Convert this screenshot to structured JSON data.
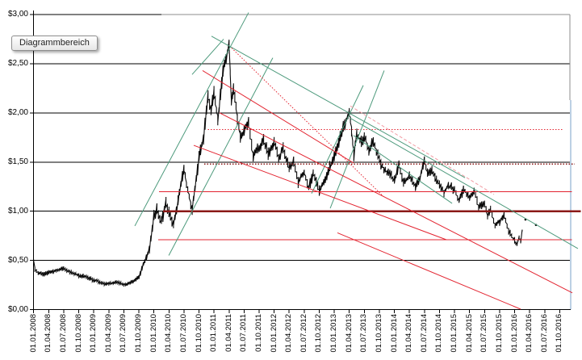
{
  "tooltip": {
    "label": "Diagrammbereich"
  },
  "colors": {
    "green_line": "#4d9a7c",
    "red_line": "#e32430",
    "dark_red_line": "#8b1a18",
    "pink_line": "#f29ca4",
    "price": "#0a0a0a",
    "grid": "#000000",
    "plot_border_gray": "#8c8c8c",
    "plot_border_blue": "#78a0c8",
    "background": "#ffffff"
  },
  "chart_data": {
    "type": "line",
    "title": "",
    "xlabel": "",
    "ylabel": "",
    "ylim": [
      0,
      3
    ],
    "xlim_quarters": [
      0,
      36
    ],
    "grid": "horizontal",
    "y_tick_labels": [
      "$3,00",
      "$2,50",
      "$2,00",
      "$1,50",
      "$1,00",
      "$0,50",
      "$0,00"
    ],
    "y_tick_values": [
      3.0,
      2.5,
      2.0,
      1.5,
      1.0,
      0.5,
      0.0
    ],
    "y_gridline_values": [
      0.5,
      1.0,
      1.5,
      2.0,
      2.5
    ],
    "x_tick_labels": [
      "01.01.2008",
      "01.04.2008",
      "01.07.2008",
      "01.10.2008",
      "01.01.2009",
      "01.04.2009",
      "01.07.2009",
      "01.10.2009",
      "01.01.2010",
      "01.04.2010",
      "01.07.2010",
      "01.10.2010",
      "01.01.2011",
      "01.04.2011",
      "01.07.2011",
      "01.10.2011",
      "01.01.2012",
      "01.04.2012",
      "01.07.2012",
      "01.10.2012",
      "01.01.2013",
      "01.04.2013",
      "01.07.2013",
      "01.10.2013",
      "01.01.2014",
      "01.04.2014",
      "01.07.2014",
      "01.10.2014",
      "01.01.2015",
      "01.04.2015",
      "01.07.2015",
      "01.10.2015",
      "01.01.2016",
      "01.04.2016",
      "01.07.2016",
      "01.10.2016"
    ],
    "x_unit": "quarter_index_from_2008Q1",
    "series": [
      {
        "name": "price",
        "points_tvr": [
          [
            0,
            0.5,
            0.01
          ],
          [
            0.08,
            0.41,
            0.02
          ],
          [
            0.3,
            0.37,
            0.02
          ],
          [
            0.6,
            0.355,
            0.02
          ],
          [
            1.0,
            0.38,
            0.02
          ],
          [
            1.5,
            0.4,
            0.025
          ],
          [
            2.0,
            0.42,
            0.02
          ],
          [
            2.5,
            0.38,
            0.02
          ],
          [
            3.0,
            0.345,
            0.02
          ],
          [
            3.5,
            0.33,
            0.02
          ],
          [
            4.0,
            0.3,
            0.02
          ],
          [
            4.5,
            0.27,
            0.015
          ],
          [
            5.0,
            0.26,
            0.015
          ],
          [
            5.5,
            0.28,
            0.015
          ],
          [
            6.0,
            0.25,
            0.015
          ],
          [
            6.5,
            0.28,
            0.018
          ],
          [
            7.0,
            0.33,
            0.02
          ],
          [
            7.4,
            0.5,
            0.03
          ],
          [
            7.7,
            0.62,
            0.04
          ],
          [
            8.0,
            0.95,
            0.05
          ],
          [
            8.2,
            1.02,
            0.05
          ],
          [
            8.5,
            0.9,
            0.05
          ],
          [
            8.8,
            1.08,
            0.05
          ],
          [
            9.0,
            1.0,
            0.05
          ],
          [
            9.3,
            0.86,
            0.045
          ],
          [
            9.6,
            1.1,
            0.05
          ],
          [
            10.0,
            1.44,
            0.05
          ],
          [
            10.25,
            1.2,
            0.05
          ],
          [
            10.55,
            1.01,
            0.05
          ],
          [
            11.0,
            1.55,
            0.06
          ],
          [
            11.3,
            1.72,
            0.06
          ],
          [
            11.6,
            2.18,
            0.07
          ],
          [
            11.8,
            2.03,
            0.06
          ],
          [
            12.0,
            2.22,
            0.06
          ],
          [
            12.25,
            1.93,
            0.06
          ],
          [
            12.6,
            2.42,
            0.06
          ],
          [
            13.0,
            2.7,
            0.04
          ],
          [
            13.15,
            2.12,
            0.05
          ],
          [
            13.3,
            2.26,
            0.05
          ],
          [
            13.55,
            1.95,
            0.05
          ],
          [
            13.75,
            1.76,
            0.05
          ],
          [
            14.0,
            1.82,
            0.05
          ],
          [
            14.3,
            1.9,
            0.05
          ],
          [
            14.6,
            1.57,
            0.05
          ],
          [
            15.0,
            1.64,
            0.05
          ],
          [
            15.3,
            1.73,
            0.05
          ],
          [
            15.6,
            1.58,
            0.05
          ],
          [
            16.0,
            1.7,
            0.05
          ],
          [
            16.3,
            1.54,
            0.05
          ],
          [
            16.6,
            1.64,
            0.05
          ],
          [
            17.0,
            1.44,
            0.05
          ],
          [
            17.3,
            1.5,
            0.05
          ],
          [
            17.6,
            1.3,
            0.05
          ],
          [
            18.0,
            1.4,
            0.05
          ],
          [
            18.3,
            1.24,
            0.05
          ],
          [
            18.6,
            1.4,
            0.05
          ],
          [
            19.0,
            1.2,
            0.05
          ],
          [
            19.3,
            1.3,
            0.05
          ],
          [
            19.7,
            1.45,
            0.05
          ],
          [
            20.0,
            1.55,
            0.05
          ],
          [
            20.3,
            1.7,
            0.05
          ],
          [
            20.6,
            1.85,
            0.06
          ],
          [
            21.0,
            2.02,
            0.04
          ],
          [
            21.15,
            1.82,
            0.05
          ],
          [
            21.3,
            1.57,
            0.05
          ],
          [
            21.5,
            1.8,
            0.05
          ],
          [
            21.8,
            1.7,
            0.05
          ],
          [
            22.0,
            1.77,
            0.05
          ],
          [
            22.3,
            1.62,
            0.05
          ],
          [
            22.6,
            1.71,
            0.05
          ],
          [
            23.0,
            1.52,
            0.05
          ],
          [
            23.3,
            1.42,
            0.045
          ],
          [
            23.7,
            1.38,
            0.045
          ],
          [
            24.0,
            1.32,
            0.045
          ],
          [
            24.3,
            1.47,
            0.045
          ],
          [
            24.6,
            1.3,
            0.04
          ],
          [
            25.0,
            1.36,
            0.04
          ],
          [
            25.4,
            1.24,
            0.04
          ],
          [
            25.7,
            1.34,
            0.04
          ],
          [
            26.0,
            1.52,
            0.04
          ],
          [
            26.2,
            1.38,
            0.04
          ],
          [
            26.5,
            1.42,
            0.04
          ],
          [
            26.8,
            1.33,
            0.04
          ],
          [
            27.0,
            1.28,
            0.04
          ],
          [
            27.3,
            1.18,
            0.04
          ],
          [
            27.6,
            1.26,
            0.04
          ],
          [
            28.0,
            1.22,
            0.04
          ],
          [
            28.3,
            1.1,
            0.04
          ],
          [
            28.6,
            1.22,
            0.04
          ],
          [
            29.0,
            1.14,
            0.038
          ],
          [
            29.3,
            1.21,
            0.038
          ],
          [
            29.6,
            1.04,
            0.038
          ],
          [
            30.0,
            1.08,
            0.035
          ],
          [
            30.2,
            0.95,
            0.035
          ],
          [
            30.4,
            1.02,
            0.035
          ],
          [
            30.7,
            0.86,
            0.035
          ],
          [
            31.0,
            0.89,
            0.032
          ],
          [
            31.3,
            0.96,
            0.032
          ],
          [
            31.6,
            0.8,
            0.03
          ],
          [
            32.0,
            0.7,
            0.028
          ],
          [
            32.15,
            0.66,
            0.025
          ],
          [
            32.3,
            0.73,
            0.025
          ],
          [
            32.4,
            0.69,
            0.022
          ],
          [
            32.5,
            0.8,
            0.02
          ]
        ]
      }
    ],
    "outlier_points": [
      [
        32.72,
        0.915
      ],
      [
        33.42,
        0.86
      ]
    ],
    "trend_lines": [
      {
        "name": "ascending-channel-2010-left",
        "t1": 6.73,
        "v1": 0.85,
        "t2": 14.3,
        "v2": 3.02,
        "color": "green",
        "style": "solid"
      },
      {
        "name": "ascending-channel-2010-right",
        "t1": 8.99,
        "v1": 0.55,
        "t2": 15.91,
        "v2": 2.56,
        "color": "green",
        "style": "solid"
      },
      {
        "name": "ascending-channel-2013-left",
        "t1": 18.49,
        "v1": 1.18,
        "t2": 21.93,
        "v2": 2.28,
        "color": "green",
        "style": "solid"
      },
      {
        "name": "ascending-channel-2013-right",
        "t1": 19.73,
        "v1": 1.03,
        "t2": 23.32,
        "v2": 2.43,
        "color": "green",
        "style": "solid"
      },
      {
        "name": "short-rise-into-2011-peak",
        "t1": 10.54,
        "v1": 2.39,
        "t2": 12.64,
        "v2": 2.75,
        "color": "green",
        "style": "solid"
      },
      {
        "name": "descent-from-2011-peak",
        "t1": 11.83,
        "v1": 2.78,
        "t2": 28.7,
        "v2": 1.34,
        "color": "green",
        "style": "solid"
      },
      {
        "name": "descent-from-2013-peak",
        "t1": 21.02,
        "v1": 1.95,
        "t2": 36.21,
        "v2": 0.62,
        "color": "green",
        "style": "solid"
      },
      {
        "name": "descent-2013-parallel",
        "t1": 21.28,
        "v1": 1.77,
        "t2": 27.84,
        "v2": 1.08,
        "color": "green",
        "style": "solid"
      },
      {
        "name": "red-descent-upper",
        "t1": 11.24,
        "v1": 2.43,
        "t2": 21.28,
        "v2": 1.49,
        "color": "red",
        "style": "solid"
      },
      {
        "name": "red-descent-mid",
        "t1": 10.65,
        "v1": 1.67,
        "t2": 27.46,
        "v2": 0.71,
        "color": "red",
        "style": "solid"
      },
      {
        "name": "red-descent-long",
        "t1": 12.37,
        "v1": 2.0,
        "t2": 35.84,
        "v2": 0.17,
        "color": "red",
        "style": "solid"
      },
      {
        "name": "red-descent-lower",
        "t1": 20.21,
        "v1": 0.78,
        "t2": 32.4,
        "v2": 0.004,
        "color": "red",
        "style": "solid"
      },
      {
        "name": "dotted-descent-from-2011-peak",
        "t1": 13.17,
        "v1": 2.66,
        "t2": 23.27,
        "v2": 1.15,
        "color": "red",
        "style": "dotted"
      },
      {
        "name": "dashed-descent-from-2013-peak",
        "t1": 21.07,
        "v1": 2.07,
        "t2": 30.63,
        "v2": 1.17,
        "color": "pink",
        "style": "dashed"
      }
    ],
    "horizontal_lines": [
      {
        "name": "resistance-1.83",
        "v": 1.83,
        "t1": 11.6,
        "t2": 35.2,
        "color": "red",
        "style": "dotted",
        "w": 1.2
      },
      {
        "name": "resistance-1.48",
        "v": 1.48,
        "t1": 11.35,
        "t2": 36.0,
        "color": "darkred",
        "style": "dotted",
        "w": 1.3
      },
      {
        "name": "level-1.20",
        "v": 1.2,
        "t1": 8.34,
        "t2": 35.8,
        "color": "red",
        "style": "solid",
        "w": 1.1
      },
      {
        "name": "level-1.00",
        "v": 1.0,
        "t1": 8.6,
        "t2": 36.4,
        "color": "darkred",
        "style": "solid",
        "w": 2.4
      },
      {
        "name": "support-0.71",
        "v": 0.71,
        "t1": 8.29,
        "t2": 35.8,
        "color": "red",
        "style": "solid",
        "w": 1.1
      }
    ]
  }
}
